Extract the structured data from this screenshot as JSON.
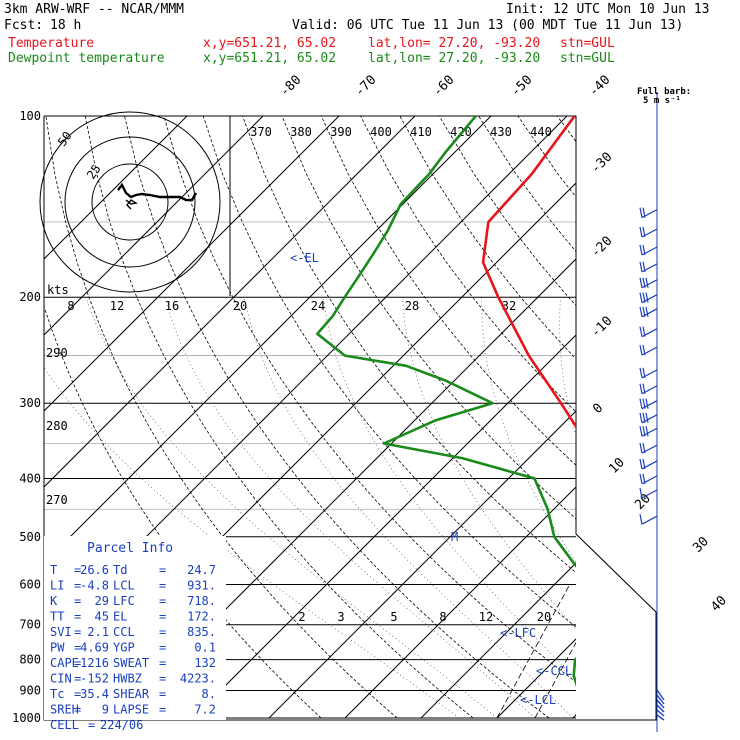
{
  "header": {
    "model": "3km ARW-WRF -- NCAR/MMM",
    "init": "Init: 12 UTC Mon 10 Jun 13",
    "fcst_label": "Fcst:",
    "fcst_hours": "18 h",
    "valid": "Valid: 06 UTC Tue 11 Jun 13 (00 MDT Tue 11 Jun 13)",
    "temp_label": "Temperature",
    "dew_label": "Dewpoint temperature",
    "xy": "x,y=651.21, 65.02",
    "latlon": "lat,lon= 27.20, -93.20",
    "stn": "stn=GUL",
    "barb_title": "Full barb:",
    "barb_unit": "5 m s⁻¹"
  },
  "chart_data": {
    "type": "line",
    "title": "",
    "xlabel": "",
    "ylabel": "",
    "pressure_levels": [
      "100",
      "200",
      "300",
      "400",
      "500",
      "600",
      "700",
      "800",
      "900",
      "1000"
    ],
    "temp_ticks": [
      "-80",
      "-70",
      "-60",
      "-50",
      "-40",
      "-30",
      "-20",
      "-10",
      "0",
      "10",
      "20",
      "30",
      "40"
    ],
    "theta_labels": [
      "370",
      "380",
      "390",
      "400",
      "410",
      "420",
      "430",
      "440"
    ],
    "hodo_speed_labels": [
      "8",
      "12",
      "16",
      "20",
      "24",
      "28",
      "32"
    ],
    "hodo_unit": "kts",
    "hodo_ring_labels": [
      "50",
      "25"
    ],
    "theta_e_labels": [
      "290",
      "280",
      "270"
    ],
    "mixing_labels": [
      "2",
      "3",
      "5",
      "8",
      "12",
      "20"
    ],
    "level_markers": [
      "<-EL",
      "<-LFC",
      "<-CCL",
      "<-LCL"
    ],
    "freezing_marker": "M",
    "series": [
      {
        "name": "Temperature",
        "color": "#e8141c",
        "points": [
          [
            1000,
            26.6
          ],
          [
            950,
            22.7
          ],
          [
            900,
            18.8
          ],
          [
            850,
            15.6
          ],
          [
            800,
            13.3
          ],
          [
            750,
            10.8
          ],
          [
            700,
            8.2
          ],
          [
            650,
            5.3
          ],
          [
            600,
            1.8
          ],
          [
            550,
            -1.9
          ],
          [
            500,
            -6.3
          ],
          [
            450,
            -11.5
          ],
          [
            400,
            -17.3
          ],
          [
            350,
            -24.3
          ],
          [
            300,
            -33.0
          ],
          [
            250,
            -43.5
          ],
          [
            200,
            -55.2
          ],
          [
            175,
            -61.8
          ],
          [
            150,
            -66.4
          ],
          [
            125,
            -67.0
          ],
          [
            100,
            -69.0
          ]
        ]
      },
      {
        "name": "Dewpoint temperature",
        "color": "#1a8a1a",
        "points": [
          [
            1000,
            24.7
          ],
          [
            975,
            20.3
          ],
          [
            950,
            13.0
          ],
          [
            925,
            10.0
          ],
          [
            900,
            7.1
          ],
          [
            850,
            4.5
          ],
          [
            800,
            2.6
          ],
          [
            750,
            2.8
          ],
          [
            700,
            1.8
          ],
          [
            650,
            -0.5
          ],
          [
            600,
            -5.2
          ],
          [
            550,
            -10.6
          ],
          [
            500,
            -16.3
          ],
          [
            450,
            -20.8
          ],
          [
            400,
            -26.6
          ],
          [
            370,
            -38.8
          ],
          [
            350,
            -51.0
          ],
          [
            320,
            -47.2
          ],
          [
            300,
            -42.0
          ],
          [
            275,
            -51.2
          ],
          [
            260,
            -58.3
          ],
          [
            250,
            -67.7
          ],
          [
            230,
            -74.2
          ],
          [
            215,
            -74.5
          ],
          [
            200,
            -75.4
          ],
          [
            185,
            -76.3
          ],
          [
            170,
            -77.3
          ],
          [
            155,
            -78.5
          ],
          [
            140,
            -80.3
          ],
          [
            125,
            -80.5
          ],
          [
            115,
            -81.2
          ],
          [
            100,
            -82.0
          ]
        ]
      }
    ]
  },
  "parcel_info": {
    "title": "Parcel Info",
    "rows": [
      [
        "T",
        "=",
        "26.6",
        "Td",
        "=",
        "24.7"
      ],
      [
        "LI",
        "=",
        "-4.8",
        "LCL",
        "=",
        "931."
      ],
      [
        "K",
        "=",
        "29",
        "LFC",
        "=",
        "718."
      ],
      [
        "TT",
        "=",
        "45",
        "EL",
        "=",
        "172."
      ],
      [
        "SVI",
        "=",
        "2.1",
        "CCL",
        "=",
        "835."
      ],
      [
        "PW",
        "=",
        "4.69",
        "YGP",
        "=",
        "0.1"
      ],
      [
        "CAPE",
        "=",
        "1216",
        "SWEAT",
        "=",
        "132"
      ],
      [
        "CIN",
        "=",
        "-152",
        "HWBZ",
        "=",
        "4223."
      ],
      [
        "Tc",
        "=",
        "35.4",
        "SHEAR",
        "=",
        "8."
      ],
      [
        "SREH",
        "=",
        "9",
        "LAPSE",
        "=",
        "7.2"
      ],
      [
        "CELL",
        "=",
        "224/06",
        "",
        "",
        ""
      ]
    ]
  },
  "wind_profile": {
    "color": "#1a3fc0",
    "barbs": [
      {
        "p": 130,
        "speed_kt": 15
      },
      {
        "p": 140,
        "speed_kt": 20
      },
      {
        "p": 150,
        "speed_kt": 20
      },
      {
        "p": 160,
        "speed_kt": 20
      },
      {
        "p": 170,
        "speed_kt": 25
      },
      {
        "p": 180,
        "speed_kt": 30
      },
      {
        "p": 190,
        "speed_kt": 30
      },
      {
        "p": 205,
        "speed_kt": 15
      },
      {
        "p": 220,
        "speed_kt": 20
      },
      {
        "p": 240,
        "speed_kt": 15
      },
      {
        "p": 255,
        "speed_kt": 15
      },
      {
        "p": 270,
        "speed_kt": 25
      },
      {
        "p": 285,
        "speed_kt": 25
      },
      {
        "p": 300,
        "speed_kt": 25
      },
      {
        "p": 320,
        "speed_kt": 20
      },
      {
        "p": 340,
        "speed_kt": 15
      },
      {
        "p": 360,
        "speed_kt": 15
      },
      {
        "p": 380,
        "speed_kt": 10
      },
      {
        "p": 420,
        "speed_kt": 5
      },
      {
        "p": 460,
        "speed_kt": 5
      },
      {
        "p": 500,
        "speed_kt": 5
      }
    ]
  }
}
